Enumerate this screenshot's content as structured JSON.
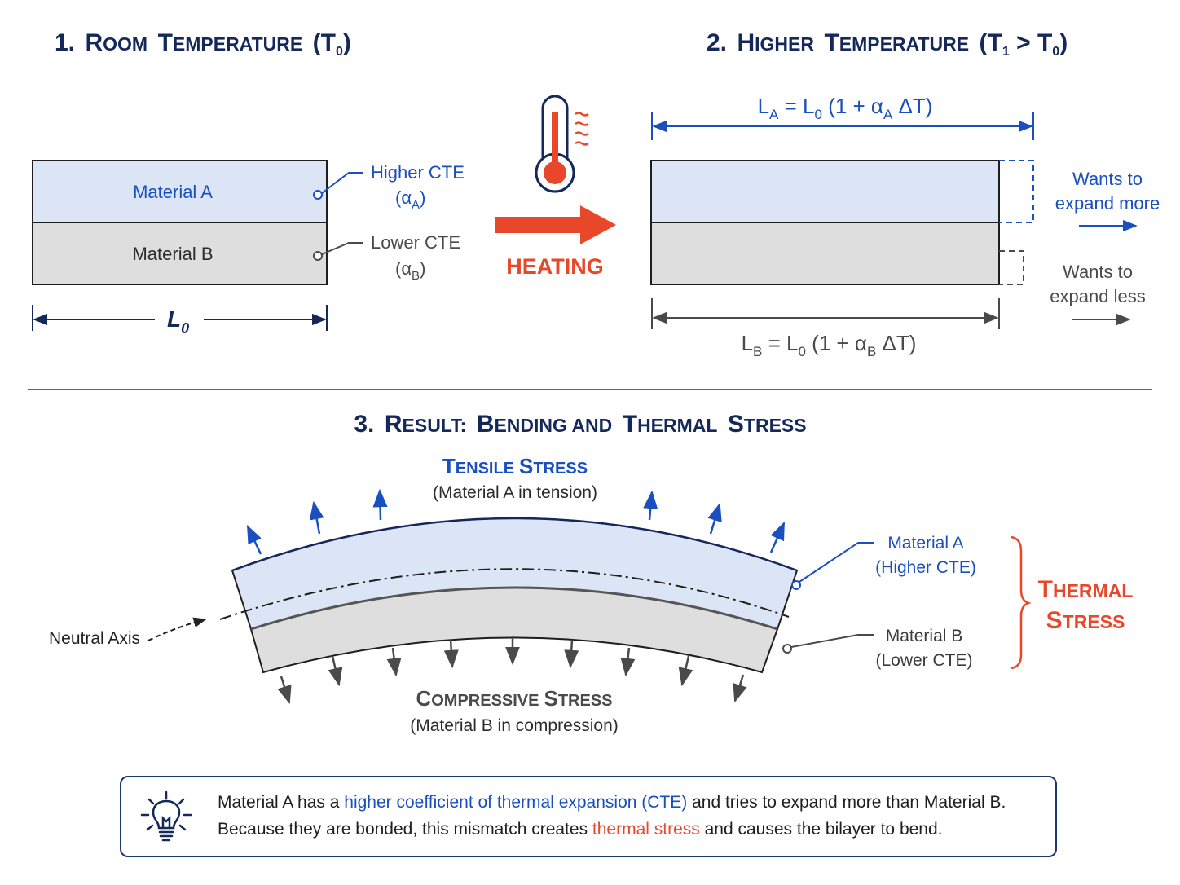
{
  "colors": {
    "navy": "#14285a",
    "blue": "#1a4fc0",
    "red": "#e8472a",
    "material_a_fill": "#dbe5f6",
    "material_b_fill": "#dedede",
    "gray_text": "#4a4a4a"
  },
  "section1": {
    "title_num": "1.",
    "title_w1_cap": "R",
    "title_w1_rest": "OOM",
    "title_w2_cap": "T",
    "title_w2_rest": "EMPERATURE",
    "title_paren_open": "(T",
    "title_sub": "0",
    "title_paren_close": ")",
    "material_a": "Material A",
    "material_b": "Material B",
    "higher_cte": "Higher CTE",
    "alpha_a_sub": "A",
    "lower_cte": "Lower CTE",
    "alpha_b_sub": "B",
    "length_label": "L",
    "length_sub": "0"
  },
  "heating": {
    "label": "HEATING",
    "icon": "thermometer-icon"
  },
  "section2": {
    "title_num": "2.",
    "title_w1_cap": "H",
    "title_w1_rest": "IGHER",
    "title_w2_cap": "T",
    "title_w2_rest": "EMPERATURE",
    "title_paren": "(T",
    "title_sub1": "1",
    "title_gt": " > T",
    "title_sub0": "0",
    "title_close": ")",
    "eq_a_L": "L",
    "eq_a_sub": "A",
    "eq_a_mid": " = L",
    "eq_a_sub0": "0",
    "eq_a_paren": " (1 + ",
    "eq_a_alpha": "α",
    "eq_a_alpha_sub": "A",
    "eq_a_end": " ΔT)",
    "eq_b_L": "L",
    "eq_b_sub": "B",
    "eq_b_mid": " = L",
    "eq_b_sub0": "0",
    "eq_b_paren": " (1 + ",
    "eq_b_alpha": "α",
    "eq_b_alpha_sub": "B",
    "eq_b_end": " ΔT)",
    "wants_more_1": "Wants to",
    "wants_more_2": "expand more",
    "wants_less_1": "Wants to",
    "wants_less_2": "expand less"
  },
  "section3": {
    "title_num": "3.",
    "title_w1_cap": "R",
    "title_w1_rest": "ESULT:",
    "title_w2_cap": "B",
    "title_w2_rest": "ENDING AND",
    "title_w3_cap": "T",
    "title_w3_rest": "HERMAL",
    "title_w4_cap": "S",
    "title_w4_rest": "TRESS",
    "tensile_cap1": "T",
    "tensile_rest1": "ENSILE",
    "tensile_cap2": "S",
    "tensile_rest2": "TRESS",
    "tensile_sub": "(Material A in tension)",
    "compressive_cap1": "C",
    "compressive_rest1": "OMPRESSIVE",
    "compressive_cap2": "S",
    "compressive_rest2": "TRESS",
    "compressive_sub": "(Material B in compression)",
    "neutral_axis": "Neutral Axis",
    "mat_a_1": "Material A",
    "mat_a_2": "(Higher CTE)",
    "mat_b_1": "Material B",
    "mat_b_2": "(Lower CTE)",
    "thermal_cap1": "T",
    "thermal_rest1": "HERMAL",
    "thermal_cap2": "S",
    "thermal_rest2": "TRESS"
  },
  "note": {
    "icon": "lightbulb-icon",
    "part1": "Material A has a ",
    "highlight1": "higher coefficient of thermal expansion (CTE)",
    "part2": " and tries to expand more than Material B.",
    "part3": "Because they are bonded, this mismatch creates ",
    "highlight2": "thermal stress",
    "part4": " and causes the bilayer to bend."
  }
}
